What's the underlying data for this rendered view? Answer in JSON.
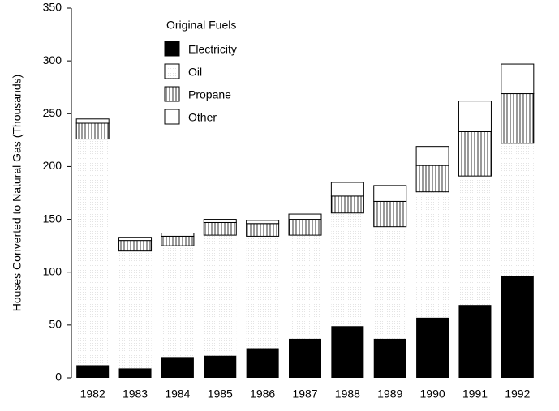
{
  "chart_data": {
    "type": "stacked-bar",
    "y_label": "Houses Converted to Natural Gas (Thousands)",
    "legend_title": "Original Fuels",
    "categories": [
      "1982",
      "1983",
      "1984",
      "1985",
      "1986",
      "1987",
      "1988",
      "1989",
      "1990",
      "1991",
      "1992"
    ],
    "series": [
      {
        "name": "Electricity",
        "color": "#000000",
        "values": [
          12,
          9,
          19,
          21,
          28,
          37,
          49,
          37,
          57,
          69,
          96
        ]
      },
      {
        "name": "Oil",
        "color": "#ffffff",
        "hatch": "dots",
        "values": [
          214,
          111,
          106,
          114,
          106,
          98,
          107,
          106,
          119,
          122,
          126
        ]
      },
      {
        "name": "Propane",
        "color": "#ffffff",
        "hatch": "vertical",
        "values": [
          15,
          10,
          9,
          12,
          12,
          15,
          16,
          24,
          25,
          42,
          47
        ]
      },
      {
        "name": "Other",
        "color": "#ffffff",
        "values": [
          4,
          3,
          3,
          3,
          3,
          5,
          13,
          15,
          18,
          29,
          28
        ]
      }
    ],
    "ylim": [
      0,
      350
    ],
    "yticks": [
      0,
      50,
      100,
      150,
      200,
      250,
      300,
      350
    ]
  }
}
